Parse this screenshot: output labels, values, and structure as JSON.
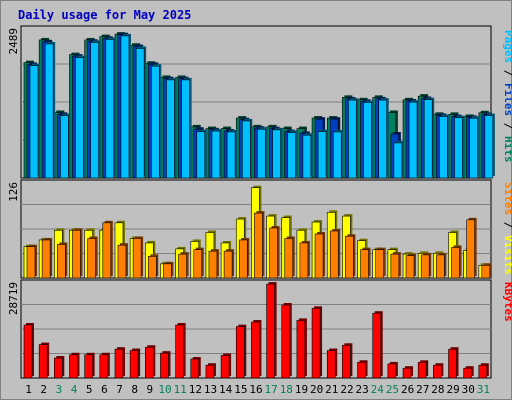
{
  "chart_data": {
    "type": "bar",
    "title": "Daily usage for May 2025",
    "colors": {
      "background": "#c0c0c0",
      "plot_background": "#c0c0c0",
      "hits": "#00805c",
      "files": "#0040c0",
      "pages": "#00c0ff",
      "visits": "#ffff00",
      "sites": "#ff8000",
      "kbytes": "#ff0000",
      "title": "#0000c0",
      "weekday": "#000000",
      "weekend": "#00805c"
    },
    "days": [
      "1",
      "2",
      "3",
      "4",
      "5",
      "6",
      "7",
      "8",
      "9",
      "10",
      "11",
      "12",
      "13",
      "14",
      "15",
      "16",
      "17",
      "18",
      "19",
      "20",
      "21",
      "22",
      "23",
      "24",
      "25",
      "26",
      "27",
      "28",
      "29",
      "30",
      "31"
    ],
    "weekend_days": [
      3,
      4,
      10,
      11,
      17,
      18,
      24,
      25,
      31
    ],
    "panels": [
      {
        "id": "hits-files-pages",
        "max_label": "2489",
        "ylim": [
          0,
          2489
        ],
        "label_parts": [
          {
            "text": "Pages",
            "color": "#00c0ff"
          },
          {
            "text": " / ",
            "color": "#000000"
          },
          {
            "text": "Files",
            "color": "#0040c0"
          },
          {
            "text": " / ",
            "color": "#000000"
          },
          {
            "text": "Hits",
            "color": "#00805c"
          }
        ],
        "series": [
          {
            "name": "Hits",
            "color": "#00805c",
            "values": [
              1940,
              2322,
              1102,
              2075,
              2322,
              2378,
              2420,
              2233,
              1930,
              1691,
              1691,
              860,
              831,
              831,
              1008,
              860,
              860,
              831,
              831,
              1008,
              1008,
              1356,
              1315,
              1356,
              1102,
              1315,
              1377,
              1071,
              1070,
              1035,
              1097
            ]
          },
          {
            "name": "Files",
            "color": "#0040c0",
            "values": [
              1910,
              2290,
              1070,
              2050,
              2300,
              2350,
              2410,
              2210,
              1910,
              1670,
              1670,
              820,
              811,
              790,
              980,
              837,
              830,
              781,
              750,
              990,
              990,
              1330,
              1290,
              1330,
              740,
              1295,
              1337,
              1052,
              1033,
              1020,
              1067
            ]
          },
          {
            "name": "Pages",
            "color": "#00c0ff",
            "values": [
              1890,
              2255,
              1050,
              2025,
              2280,
              2330,
              2390,
              2180,
              1880,
              1650,
              1650,
              780,
              790,
              775,
              960,
              820,
              810,
              765,
              720,
              780,
              775,
              1310,
              1270,
              1310,
              590,
              1275,
              1317,
              1035,
              1015,
              1005,
              1050
            ]
          }
        ]
      },
      {
        "id": "visits-sites",
        "max_label": "126",
        "ylim": [
          0,
          126
        ],
        "label_parts": [
          {
            "text": "Sites",
            "color": "#ff8000"
          },
          {
            "text": " / ",
            "color": "#000000"
          },
          {
            "text": "Visits",
            "color": "#ffff00"
          }
        ],
        "series": [
          {
            "name": "Visits",
            "color": "#ffff00",
            "values": [
              42,
              51,
              64,
              64,
              64,
              64,
              74,
              53,
              47,
              19,
              39,
              49,
              61,
              47,
              79,
              121,
              83,
              81,
              64,
              75,
              88,
              83,
              50,
              38,
              38,
              32,
              33,
              33,
              61,
              37,
              17
            ]
          },
          {
            "name": "Sites",
            "color": "#ff8000",
            "values": [
              42,
              51,
              45,
              64,
              53,
              74,
              44,
              53,
              29,
              19,
              32,
              38,
              36,
              36,
              51,
              87,
              67,
              53,
              47,
              59,
              63,
              56,
              38,
              38,
              32,
              30,
              31,
              31,
              41,
              78,
              17
            ]
          }
        ]
      },
      {
        "id": "kbytes",
        "max_label": "28719",
        "ylim": [
          0,
          28719
        ],
        "label_parts": [
          {
            "text": "KBytes",
            "color": "#ff0000"
          }
        ],
        "series": [
          {
            "name": "KBytes",
            "color": "#ff0000",
            "values": [
              16200,
              10200,
              6100,
              7100,
              7100,
              7100,
              8800,
              8400,
              9400,
              7600,
              16200,
              5800,
              3900,
              6900,
              15700,
              17100,
              28700,
              22300,
              17600,
              21300,
              8400,
              10000,
              4800,
              19800,
              4300,
              3000,
              4800,
              3900,
              8800,
              3000,
              3900
            ]
          }
        ]
      }
    ]
  }
}
